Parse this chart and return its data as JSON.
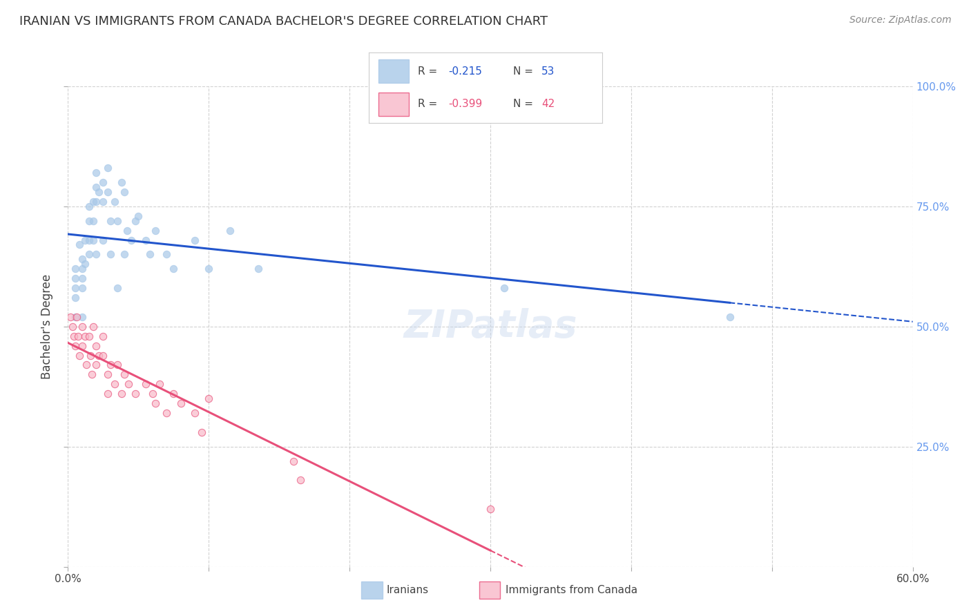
{
  "title": "IRANIAN VS IMMIGRANTS FROM CANADA BACHELOR'S DEGREE CORRELATION CHART",
  "source": "Source: ZipAtlas.com",
  "ylabel": "Bachelor's Degree",
  "xmin": 0.0,
  "xmax": 0.6,
  "ymin": 0.0,
  "ymax": 1.0,
  "x_ticks": [
    0.0,
    0.1,
    0.2,
    0.3,
    0.4,
    0.5,
    0.6
  ],
  "x_tick_labels": [
    "0.0%",
    "",
    "",
    "",
    "",
    "",
    "60.0%"
  ],
  "y_ticks": [
    0.0,
    0.25,
    0.5,
    0.75,
    1.0
  ],
  "y_tick_labels_right": [
    "",
    "25.0%",
    "50.0%",
    "75.0%",
    "100.0%"
  ],
  "iranians_R": -0.215,
  "iranians_N": 53,
  "canada_R": -0.399,
  "canada_N": 42,
  "blue_scatter_color": "#a8c8e8",
  "blue_line_color": "#2255cc",
  "pink_scatter_color": "#f8b8c8",
  "pink_line_color": "#e8507a",
  "watermark": "ZIPatlas",
  "iranians_x": [
    0.005,
    0.005,
    0.005,
    0.005,
    0.005,
    0.008,
    0.01,
    0.01,
    0.01,
    0.01,
    0.01,
    0.012,
    0.012,
    0.015,
    0.015,
    0.015,
    0.015,
    0.018,
    0.018,
    0.018,
    0.02,
    0.02,
    0.02,
    0.02,
    0.022,
    0.025,
    0.025,
    0.025,
    0.028,
    0.028,
    0.03,
    0.03,
    0.033,
    0.035,
    0.035,
    0.038,
    0.04,
    0.04,
    0.042,
    0.045,
    0.048,
    0.05,
    0.055,
    0.058,
    0.062,
    0.07,
    0.075,
    0.09,
    0.1,
    0.115,
    0.135,
    0.31,
    0.47
  ],
  "iranians_y": [
    0.62,
    0.6,
    0.58,
    0.56,
    0.52,
    0.67,
    0.64,
    0.62,
    0.6,
    0.58,
    0.52,
    0.68,
    0.63,
    0.75,
    0.72,
    0.68,
    0.65,
    0.76,
    0.72,
    0.68,
    0.82,
    0.79,
    0.76,
    0.65,
    0.78,
    0.8,
    0.76,
    0.68,
    0.83,
    0.78,
    0.72,
    0.65,
    0.76,
    0.72,
    0.58,
    0.8,
    0.78,
    0.65,
    0.7,
    0.68,
    0.72,
    0.73,
    0.68,
    0.65,
    0.7,
    0.65,
    0.62,
    0.68,
    0.62,
    0.7,
    0.62,
    0.58,
    0.52
  ],
  "canada_x": [
    0.002,
    0.003,
    0.004,
    0.005,
    0.006,
    0.007,
    0.008,
    0.01,
    0.01,
    0.012,
    0.013,
    0.015,
    0.016,
    0.017,
    0.018,
    0.02,
    0.02,
    0.022,
    0.025,
    0.025,
    0.028,
    0.028,
    0.03,
    0.033,
    0.035,
    0.038,
    0.04,
    0.043,
    0.048,
    0.055,
    0.06,
    0.062,
    0.065,
    0.07,
    0.075,
    0.08,
    0.09,
    0.095,
    0.1,
    0.16,
    0.165,
    0.3
  ],
  "canada_y": [
    0.52,
    0.5,
    0.48,
    0.46,
    0.52,
    0.48,
    0.44,
    0.5,
    0.46,
    0.48,
    0.42,
    0.48,
    0.44,
    0.4,
    0.5,
    0.46,
    0.42,
    0.44,
    0.48,
    0.44,
    0.4,
    0.36,
    0.42,
    0.38,
    0.42,
    0.36,
    0.4,
    0.38,
    0.36,
    0.38,
    0.36,
    0.34,
    0.38,
    0.32,
    0.36,
    0.34,
    0.32,
    0.28,
    0.35,
    0.22,
    0.18,
    0.12
  ],
  "iranians_marker_size": 55,
  "canada_marker_size": 55,
  "background_color": "#ffffff",
  "grid_color": "#cccccc",
  "title_fontsize": 13,
  "source_fontsize": 10,
  "tick_fontsize": 11,
  "ylabel_fontsize": 12
}
